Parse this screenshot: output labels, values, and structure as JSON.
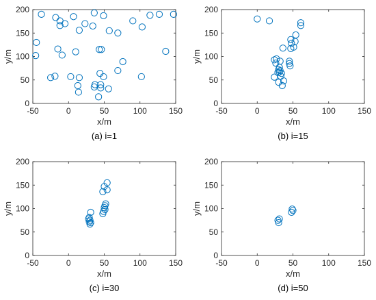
{
  "style": {
    "marker_color": "#0072BD",
    "axis_color": "#262626"
  },
  "chart_data": [
    {
      "type": "scatter",
      "caption": "(a) i=1",
      "xlabel": "x/m",
      "ylabel": "y/m",
      "xlim": [
        -50,
        150
      ],
      "ylim": [
        0,
        200
      ],
      "xticks": [
        -50,
        0,
        50,
        100,
        150
      ],
      "yticks": [
        0,
        50,
        100,
        150,
        200
      ],
      "grid": false,
      "marker": "circle",
      "points": [
        [
          -38,
          190
        ],
        [
          -18,
          183
        ],
        [
          -12,
          176
        ],
        [
          -12,
          166
        ],
        [
          -5,
          170
        ],
        [
          7,
          185
        ],
        [
          23,
          170
        ],
        [
          36,
          193
        ],
        [
          49,
          187
        ],
        [
          34,
          165
        ],
        [
          15,
          156
        ],
        [
          57,
          155
        ],
        [
          69,
          150
        ],
        [
          90,
          176
        ],
        [
          103,
          163
        ],
        [
          114,
          188
        ],
        [
          127,
          190
        ],
        [
          147,
          190
        ],
        [
          -45,
          130
        ],
        [
          -46,
          102
        ],
        [
          -15,
          116
        ],
        [
          -9,
          103
        ],
        [
          10,
          110
        ],
        [
          43,
          115
        ],
        [
          46,
          115
        ],
        [
          76,
          89
        ],
        [
          136,
          111
        ],
        [
          69,
          70
        ],
        [
          44,
          64
        ],
        [
          49,
          57
        ],
        [
          102,
          57
        ],
        [
          -25,
          55
        ],
        [
          -19,
          58
        ],
        [
          3,
          57
        ],
        [
          15,
          55
        ],
        [
          13,
          38
        ],
        [
          14,
          24
        ],
        [
          36,
          35
        ],
        [
          37,
          40
        ],
        [
          45,
          40
        ],
        [
          45,
          33
        ],
        [
          56,
          31
        ],
        [
          42,
          14
        ]
      ]
    },
    {
      "type": "scatter",
      "caption": "(b) i=15",
      "xlabel": "x/m",
      "ylabel": "y/m",
      "xlim": [
        -50,
        150
      ],
      "ylim": [
        0,
        200
      ],
      "xticks": [
        -50,
        0,
        50,
        100,
        150
      ],
      "yticks": [
        0,
        50,
        100,
        150,
        200
      ],
      "grid": false,
      "marker": "circle",
      "points": [
        [
          0,
          180
        ],
        [
          17,
          176
        ],
        [
          61,
          172
        ],
        [
          61,
          166
        ],
        [
          54,
          146
        ],
        [
          47,
          136
        ],
        [
          53,
          132
        ],
        [
          48,
          128
        ],
        [
          51,
          120
        ],
        [
          47,
          117
        ],
        [
          36,
          118
        ],
        [
          24,
          93
        ],
        [
          27,
          95
        ],
        [
          32,
          90
        ],
        [
          26,
          86
        ],
        [
          45,
          90
        ],
        [
          45,
          85
        ],
        [
          46,
          80
        ],
        [
          31,
          77
        ],
        [
          30,
          72
        ],
        [
          32,
          70
        ],
        [
          31,
          67
        ],
        [
          29,
          66
        ],
        [
          34,
          64
        ],
        [
          33,
          58
        ],
        [
          24,
          56
        ],
        [
          37,
          48
        ],
        [
          30,
          45
        ],
        [
          35,
          38
        ]
      ]
    },
    {
      "type": "scatter",
      "caption": "(c) i=30",
      "xlabel": "x/m",
      "ylabel": "y/m",
      "xlim": [
        -50,
        150
      ],
      "ylim": [
        0,
        200
      ],
      "xticks": [
        -50,
        0,
        50,
        100,
        150
      ],
      "yticks": [
        0,
        50,
        100,
        150,
        200
      ],
      "grid": false,
      "marker": "circle",
      "points": [
        [
          54,
          155
        ],
        [
          50,
          147
        ],
        [
          54,
          140
        ],
        [
          48,
          136
        ],
        [
          52,
          110
        ],
        [
          51,
          106
        ],
        [
          50,
          102
        ],
        [
          51,
          98
        ],
        [
          49,
          94
        ],
        [
          48,
          89
        ],
        [
          31,
          92
        ],
        [
          29,
          81
        ],
        [
          28,
          78
        ],
        [
          30,
          75
        ],
        [
          29,
          72
        ],
        [
          31,
          70
        ],
        [
          30,
          67
        ]
      ]
    },
    {
      "type": "scatter",
      "caption": "(d) i=50",
      "xlabel": "x/m",
      "ylabel": "y/m",
      "xlim": [
        -50,
        150
      ],
      "ylim": [
        0,
        200
      ],
      "xticks": [
        -50,
        0,
        50,
        100,
        150
      ],
      "yticks": [
        0,
        50,
        100,
        150,
        200
      ],
      "grid": false,
      "marker": "circle",
      "points": [
        [
          49,
          99
        ],
        [
          50,
          96
        ],
        [
          48,
          92
        ],
        [
          31,
          78
        ],
        [
          29,
          75
        ],
        [
          30,
          70
        ]
      ]
    }
  ]
}
